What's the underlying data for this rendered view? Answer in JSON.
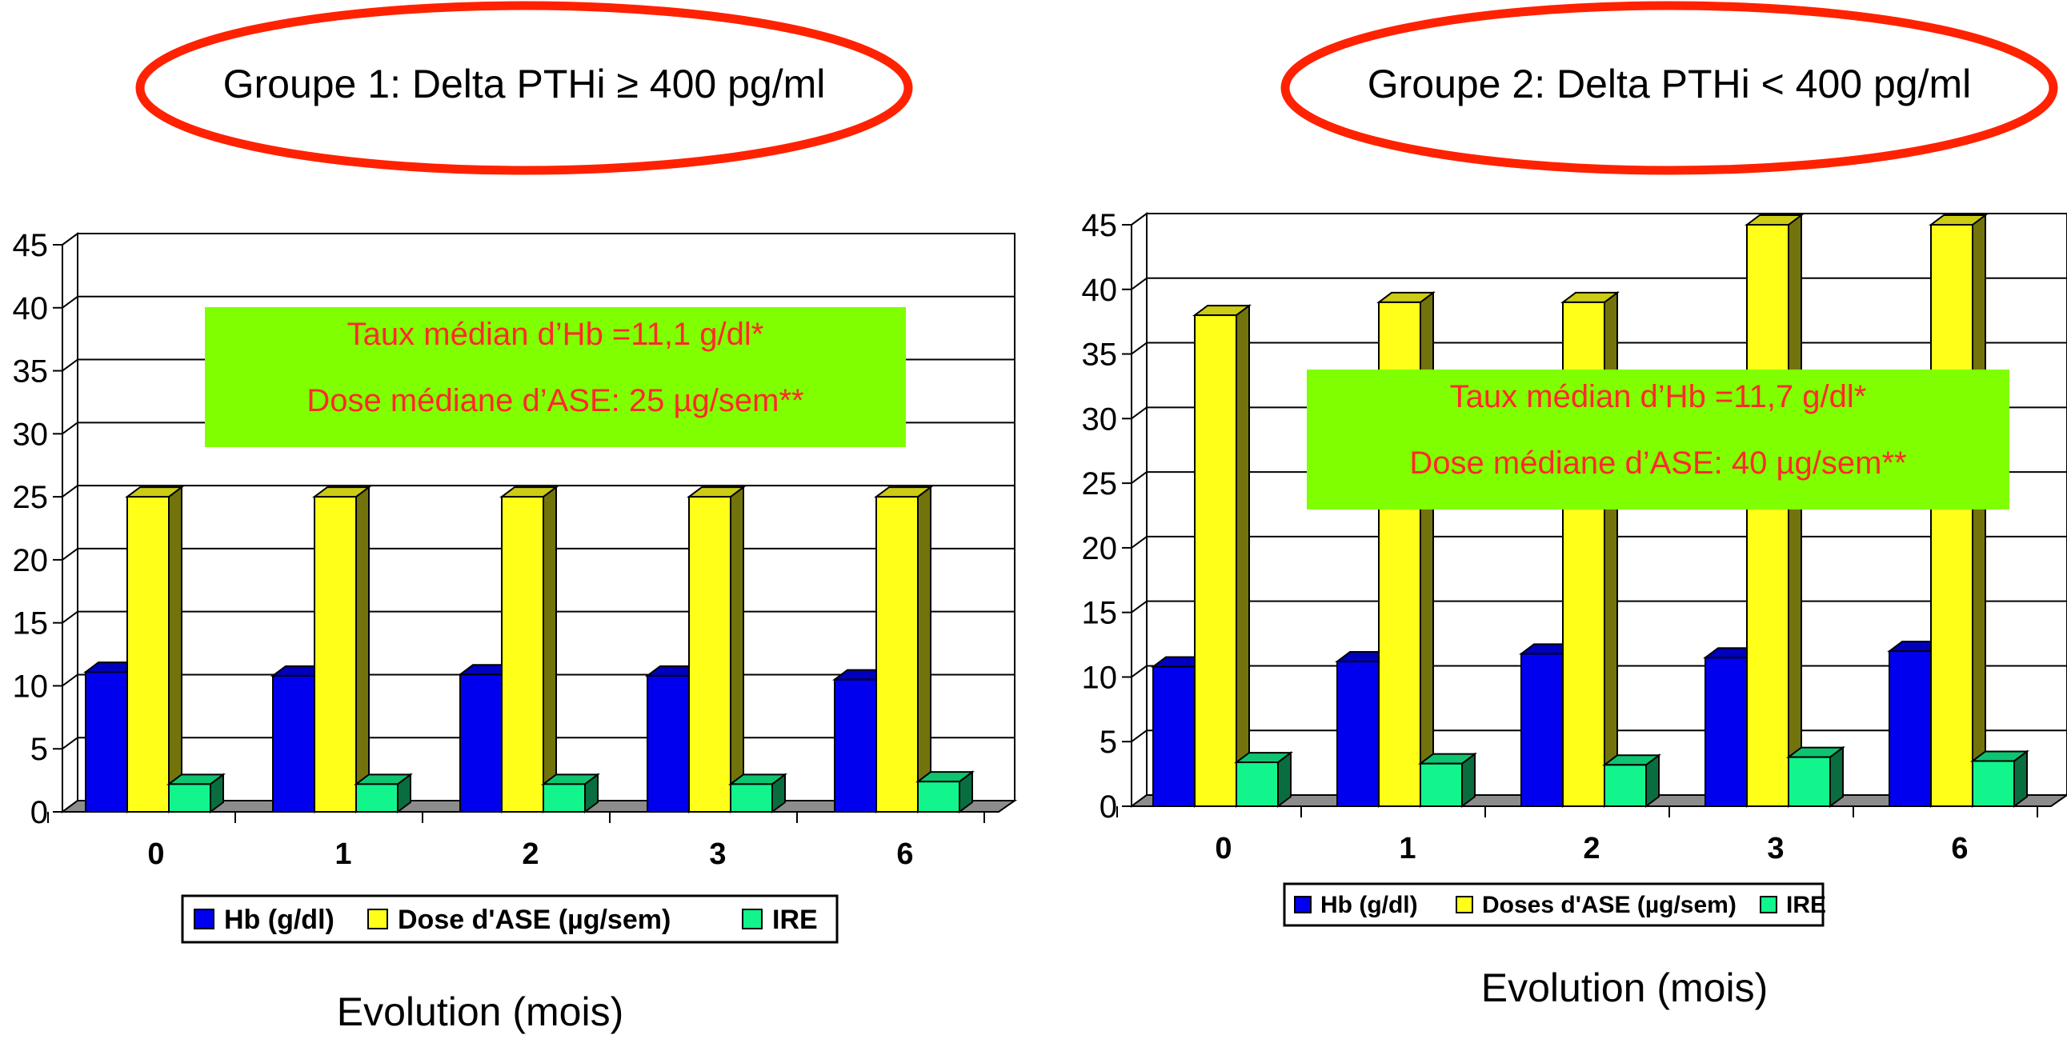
{
  "chart_data": [
    {
      "type": "bar",
      "title": "Groupe 1: Delta PTHi ≥  400 pg/ml",
      "categories": [
        "0",
        "1",
        "2",
        "3",
        "6"
      ],
      "xlabel": "Evolution (mois)",
      "ylabel": "",
      "ylim": [
        0,
        45
      ],
      "yticks": [
        "0",
        "5",
        "10",
        "15",
        "20",
        "25",
        "30",
        "35",
        "40",
        "45"
      ],
      "grid": true,
      "legend_position": "bottom",
      "series": [
        {
          "name": "Hb (g/dl)",
          "color": "#0000ee",
          "values": [
            11.1,
            10.8,
            10.9,
            10.8,
            10.5
          ]
        },
        {
          "name": "Dose d'ASE (µg/sem)",
          "color": "#ffff1a",
          "values": [
            25,
            25,
            25,
            25,
            25
          ]
        },
        {
          "name": "IRE",
          "color": "#11f58c",
          "values": [
            2.2,
            2.2,
            2.2,
            2.2,
            2.4
          ]
        }
      ],
      "annotation": [
        "Taux médian d’Hb =11,1 g/dl*",
        "Dose médiane d’ASE: 25 µg/sem**"
      ]
    },
    {
      "type": "bar",
      "title": "Groupe 2: Delta PTHi < 400 pg/ml",
      "categories": [
        "0",
        "1",
        "2",
        "3",
        "6"
      ],
      "xlabel": "Evolution (mois)",
      "ylabel": "",
      "ylim": [
        0,
        45
      ],
      "yticks": [
        "0",
        "5",
        "10",
        "15",
        "20",
        "25",
        "30",
        "35",
        "40",
        "45"
      ],
      "grid": true,
      "legend_position": "bottom",
      "series": [
        {
          "name": "Hb (g/dl)",
          "color": "#0000ee",
          "values": [
            10.8,
            11.2,
            11.8,
            11.5,
            12
          ]
        },
        {
          "name": "Doses d'ASE (µg/sem)",
          "color": "#ffff1a",
          "values": [
            38,
            39,
            39,
            45,
            45
          ]
        },
        {
          "name": "IRE",
          "color": "#11f58c",
          "values": [
            3.4,
            3.3,
            3.2,
            3.8,
            3.5
          ]
        }
      ],
      "annotation": [
        "Taux médian d’Hb =11,7 g/dl*",
        "Dose médiane d’ASE: 40 µg/sem**"
      ]
    }
  ],
  "colors": {
    "title_ellipse": "#ff2200",
    "annotation_box": "#80ff00",
    "annotation_text": "#ff2a2a",
    "floor": "#8c8c8c"
  }
}
